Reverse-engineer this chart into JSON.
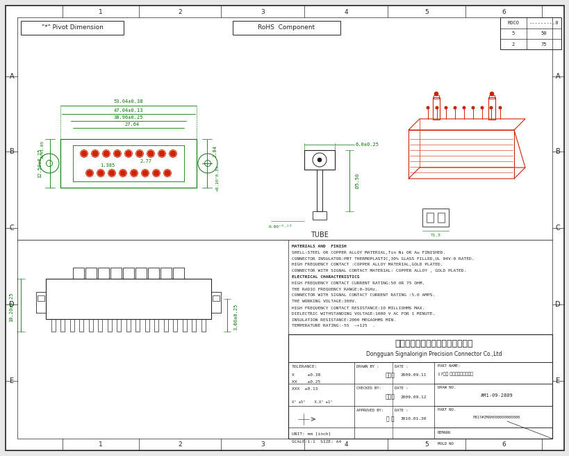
{
  "bg_color": "#e8e8e8",
  "border_color": "#333333",
  "green_color": "#007700",
  "red_color": "#cc2200",
  "dark_color": "#222222",
  "white_color": "#ffffff",
  "blue_color": "#3355aa",
  "pivot_label": "\"*\" Pivot Dimension",
  "rohs_label": "RoHS  Component",
  "company_cn": "东莞市迅颎原精密连接器有限公司",
  "company_en": "Dongguan Signalorigin Precision Connector Co.,Ltd",
  "part_name": "17屏公 拔嘴型插式内层終合",
  "draw_no": "AM1-09-2809",
  "part_no": "FB17#2MXH000000000000",
  "drawn_by": "杨冬樿",
  "drawn_date": "2009.09.11",
  "checked_by": "余飞白",
  "checked_date": "2009.09.12",
  "approved_by": "庞 瑞",
  "approved_date": "3010.01.30",
  "scale_text": "SCALE:1:1",
  "size_text": "SIZE: A4",
  "unit_text": "UNIT: mm [inch]",
  "tol_label": "TOLERANCE:",
  "tol_x": "X     ±0.38",
  "tol_xx": "XX    ±0.25",
  "tol_xxx": "XXX  ±0.13",
  "tol_ang": "X° ±5°    X.X° ±1°",
  "rev_rows": [
    [
      "ROCO",
      "--------.0"
    ],
    [
      "5",
      "50"
    ],
    [
      "2",
      "75"
    ]
  ],
  "mat_lines": [
    "MATERIALS AND  FINISH",
    "SHELL:STEEL OR COPPER ALLOY MATERIAL,Tin Ni OR Au FINISHED.",
    "CONNECTOR INSULATOR:PBT THERMOPLASTIC,30% GLASS FILLED,UL 94V-0 RATED.",
    "HIGH FREQUENCY CONTACT :COPPER ALLOY MATERIAL,GOLD PLATED.",
    "CONNECTOR WITH SIGNAL CONTACT MATERIAL: COPPER ALLOY , GOLD PLATED.",
    "ELECTRICAL CHARACTERISTICS",
    "HIGH FREQUENCY CONTACT CURRENT RATING:50 OR 75 OHM.",
    "THE RADIO FREQUENCY RANGE:0~3GHz.",
    "CONNECTOR WITH SIGNAL CONTACT CURRENT RATING :5.0 AMPS.",
    "THE WORKING VOLTAGE:300V.",
    "HIGH FREQUENCY CONTACT RESISTANCE:10 MILLIOHMS MAX.",
    "DIELECTRIC WITHSTANDING VOLTAGE:1000 V AC FOR 1 MINUTE.",
    "INSULATION RESISTANCE:2000 MEGAOHMS MIN.",
    "TEMPERATURE RATING:-55  ~+125  ."
  ],
  "front_w_outer": "53.04±0.38",
  "front_w_mid1": "47.04±0.13",
  "front_w_mid2": "38.96±0.25",
  "front_w_inner": "27.64",
  "front_h": "12.50±0.25",
  "front_angle": "2×43.05",
  "front_ps1": "1.385",
  "front_ps2": "2.77",
  "front_hr": "2.84",
  "front_hr2": "+8.10°0.35",
  "side_w": "6.0±0.25",
  "side_h": "Ø5.50",
  "side_bot": "0.80⁺⁰₋¹³",
  "tube_label": "TUBE",
  "bot_hl": "10.20±0.25",
  "bot_hr": "3.60±0.25"
}
